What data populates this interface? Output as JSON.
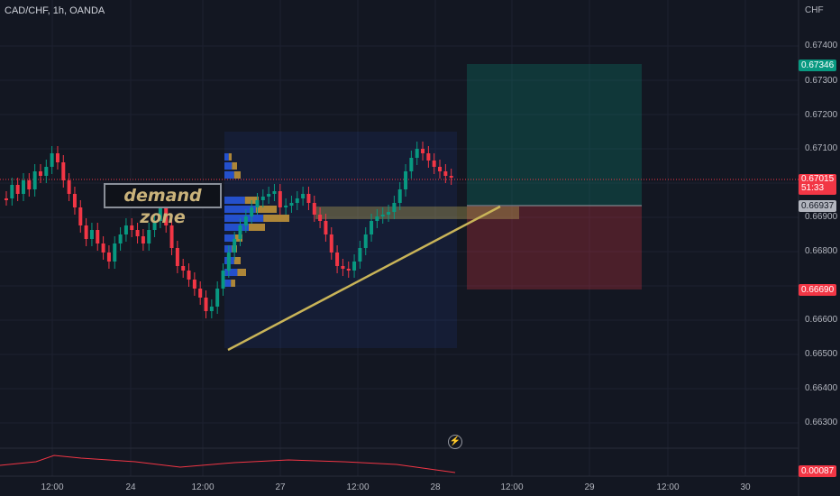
{
  "header": {
    "symbol": "CAD/CHF, 1h, OANDA",
    "currency": "CHF"
  },
  "price_axis": {
    "ticks": [
      "0.67400",
      "0.67300",
      "0.67200",
      "0.67100",
      "0.66900",
      "0.66800",
      "0.66600",
      "0.66500",
      "0.66400",
      "0.66300"
    ]
  },
  "time_axis": {
    "ticks": [
      "12:00",
      "24",
      "12:00",
      "27",
      "12:00",
      "28",
      "12:00",
      "29",
      "12:00",
      "30"
    ]
  },
  "badges": {
    "target": {
      "value": "0.67346",
      "color": "#089981"
    },
    "last": {
      "value": "0.67015",
      "countdown": "51:33",
      "color": "#f23645"
    },
    "entry": {
      "value": "0.66937",
      "color": "#b2b5be"
    },
    "stop": {
      "value": "0.66690",
      "color": "#f23645"
    },
    "indicator": {
      "value": "0.00087",
      "color": "#f23645"
    }
  },
  "annotation": {
    "demand_zone": "demand zone"
  },
  "colors": {
    "background": "#131722",
    "bull": "#089981",
    "bear": "#f23645",
    "trendline": "#c9b458"
  },
  "icons": {
    "replay": "lightning-icon"
  }
}
